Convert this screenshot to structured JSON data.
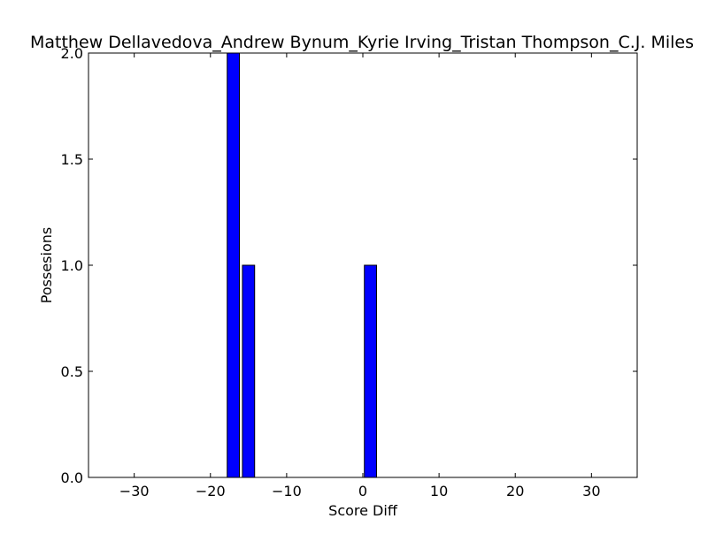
{
  "chart_data": {
    "type": "bar",
    "title": "Matthew Dellavedova_Andrew Bynum_Kyrie Irving_Tristan Thompson_C.J. Miles",
    "xlabel": "Score Diff",
    "ylabel": "Possesions",
    "xlim": [
      -36,
      36
    ],
    "ylim": [
      0,
      2
    ],
    "x_ticks": [
      -30,
      -20,
      -10,
      0,
      10,
      20,
      30
    ],
    "y_ticks": [
      0.0,
      0.5,
      1.0,
      1.5,
      2.0
    ],
    "x_tick_labels": [
      "−30",
      "−20",
      "−10",
      "0",
      "10",
      "20",
      "30"
    ],
    "y_tick_labels": [
      "0.0",
      "0.5",
      "1.0",
      "1.5",
      "2.0"
    ],
    "bar_width": 1.6,
    "bars": [
      {
        "x": -17,
        "value": 2
      },
      {
        "x": -15,
        "value": 1
      },
      {
        "x": 1,
        "value": 1
      }
    ],
    "grid": false,
    "bar_color": "#0000ff",
    "edge_color": "#000000"
  }
}
